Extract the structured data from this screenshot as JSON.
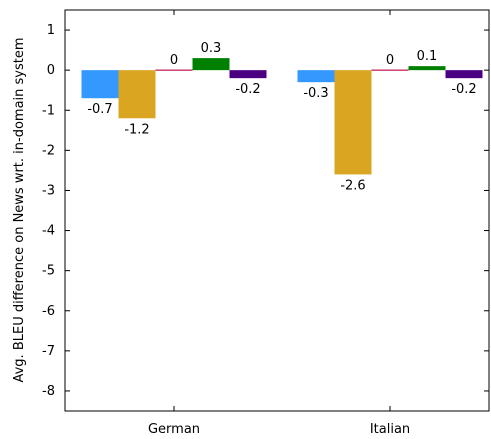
{
  "chart_data": {
    "type": "bar",
    "categories": [
      "German",
      "Italian"
    ],
    "series": [
      {
        "values": [
          -0.7,
          -0.3
        ],
        "color": "#3399ff"
      },
      {
        "values": [
          -1.2,
          -2.6
        ],
        "color": "#daa520"
      },
      {
        "values": [
          0,
          0
        ],
        "color": "#c0104a"
      },
      {
        "values": [
          0.3,
          0.1
        ],
        "color": "#008000"
      },
      {
        "values": [
          -0.2,
          -0.2
        ],
        "color": "#4b0082"
      }
    ],
    "data_labels": [
      [
        "-0.7",
        "-1.2",
        "0",
        "0.3",
        "-0.2"
      ],
      [
        "-0.3",
        "-2.6",
        "0",
        "0.1",
        "-0.2"
      ]
    ],
    "ylabel": "Avg. BLEU difference on News wrt. in-domain system",
    "xlabel": "",
    "ylim": [
      -8.5,
      1.5
    ],
    "yticks": [
      "1",
      "0",
      "-1",
      "-2",
      "-3",
      "-4",
      "-5",
      "-6",
      "-7",
      "-8"
    ],
    "grid": false,
    "legend": "none"
  }
}
